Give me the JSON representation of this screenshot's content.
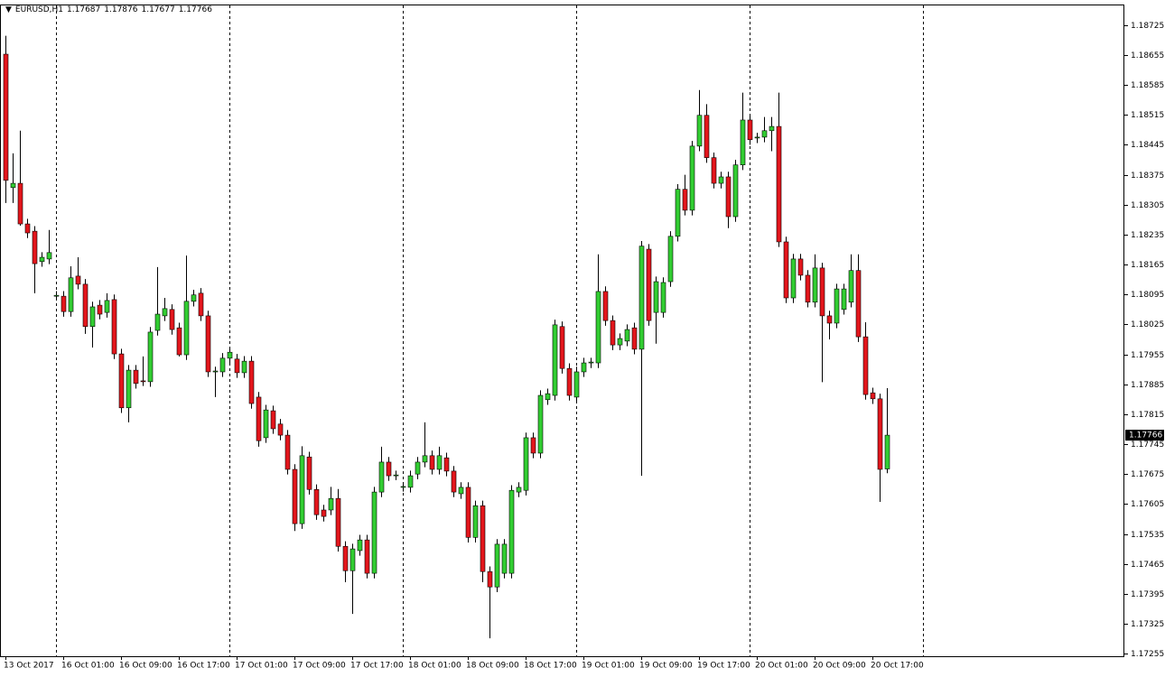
{
  "chart_data": {
    "type": "candlestick",
    "title": "EURUSD,H1",
    "up_color": "#32cd32",
    "down_color": "#e3161c",
    "ylim": [
      1.17249,
      1.18771
    ],
    "yticks": [
      1.17255,
      1.17325,
      1.17395,
      1.17465,
      1.17535,
      1.17605,
      1.17675,
      1.17745,
      1.17815,
      1.17885,
      1.17955,
      1.18025,
      1.18095,
      1.18165,
      1.18235,
      1.18305,
      1.18375,
      1.18445,
      1.18515,
      1.18585,
      1.18655,
      1.18725
    ],
    "categories": [
      "13 Oct 2017",
      null,
      null,
      null,
      null,
      null,
      null,
      null,
      "16 Oct 01:00",
      null,
      null,
      null,
      null,
      null,
      null,
      null,
      "16 Oct 09:00",
      null,
      null,
      null,
      null,
      null,
      null,
      null,
      "16 Oct 17:00",
      null,
      null,
      null,
      null,
      null,
      null,
      null,
      "17 Oct 01:00",
      null,
      null,
      null,
      null,
      null,
      null,
      null,
      "17 Oct 09:00",
      null,
      null,
      null,
      null,
      null,
      null,
      null,
      "17 Oct 17:00",
      null,
      null,
      null,
      null,
      null,
      null,
      null,
      "18 Oct 01:00",
      null,
      null,
      null,
      null,
      null,
      null,
      null,
      "18 Oct 09:00",
      null,
      null,
      null,
      null,
      null,
      null,
      null,
      "18 Oct 17:00",
      null,
      null,
      null,
      null,
      null,
      null,
      null,
      "19 Oct 01:00",
      null,
      null,
      null,
      null,
      null,
      null,
      null,
      "19 Oct 09:00",
      null,
      null,
      null,
      null,
      null,
      null,
      null,
      "19 Oct 17:00",
      null,
      null,
      null,
      null,
      null,
      null,
      null,
      "20 Oct 01:00",
      null,
      null,
      null,
      null,
      null,
      null,
      null,
      "20 Oct 09:00",
      null,
      null,
      null,
      null,
      null,
      null,
      null,
      "20 Oct 17:00",
      null,
      null
    ],
    "open": [
      1.18657,
      1.18345,
      1.18355,
      1.1826,
      1.18243,
      1.18172,
      1.18178,
      1.18091,
      1.18091,
      1.18055,
      1.18138,
      1.18119,
      1.1802,
      1.1807,
      1.18053,
      1.18083,
      1.17956,
      1.1783,
      1.17918,
      1.17893,
      1.17891,
      1.18011,
      1.18045,
      1.1806,
      1.18017,
      1.17954,
      1.18079,
      1.18098,
      1.18045,
      1.17914,
      1.17914,
      1.17946,
      1.17944,
      1.17912,
      1.17939,
      1.17855,
      1.1776,
      1.17823,
      1.17792,
      1.17766,
      1.17686,
      1.17559,
      1.17715,
      1.17639,
      1.17591,
      1.17591,
      1.17618,
      1.17506,
      1.17449,
      1.17496,
      1.17521,
      1.17443,
      1.17633,
      1.17703,
      1.17671,
      1.17644,
      1.17644,
      1.17675,
      1.17703,
      1.17718,
      1.17686,
      1.17713,
      1.17682,
      1.17629,
      1.17644,
      1.17527,
      1.17601,
      1.17447,
      1.17411,
      1.17443,
      1.17443,
      1.17633,
      1.17637,
      1.1776,
      1.17724,
      1.17849,
      1.17859,
      1.1802,
      1.17922,
      1.17855,
      1.17914,
      1.17935,
      1.17935,
      1.18102,
      1.18034,
      1.17977,
      1.17986,
      1.18017,
      1.17967,
      1.18201,
      1.18053,
      1.18053,
      1.18125,
      1.18231,
      1.18341,
      1.18292,
      1.18442,
      1.18514,
      1.18415,
      1.18355,
      1.1837,
      1.18277,
      1.18398,
      1.18503,
      1.18461,
      1.18463,
      1.18478,
      1.18488,
      1.18218,
      1.18087,
      1.18178,
      1.1814,
      1.18077,
      1.18157,
      1.18045,
      1.18028,
      1.1806,
      1.18077,
      1.18151,
      1.17996,
      1.17865,
      1.17851,
      1.17687
    ],
    "high": [
      1.187,
      1.18425,
      1.18478,
      1.18272,
      1.18255,
      1.18194,
      1.18246,
      1.18103,
      1.18103,
      1.18161,
      1.18182,
      1.18131,
      1.18078,
      1.18082,
      1.18098,
      1.18095,
      1.17968,
      1.1793,
      1.1793,
      1.1795,
      1.18019,
      1.18159,
      1.18087,
      1.18072,
      1.18029,
      1.18186,
      1.18106,
      1.1811,
      1.18057,
      1.17926,
      1.17958,
      1.17972,
      1.17956,
      1.17951,
      1.17951,
      1.17867,
      1.17837,
      1.17835,
      1.17804,
      1.17778,
      1.17698,
      1.1774,
      1.17727,
      1.17651,
      1.17603,
      1.17645,
      1.1764,
      1.17518,
      1.17512,
      1.17533,
      1.17533,
      1.17645,
      1.17739,
      1.17715,
      1.17683,
      1.17656,
      1.17683,
      1.17715,
      1.17796,
      1.1773,
      1.17739,
      1.17725,
      1.17694,
      1.17656,
      1.17656,
      1.17613,
      1.17613,
      1.17459,
      1.17523,
      1.17523,
      1.17649,
      1.17656,
      1.17772,
      1.17772,
      1.17871,
      1.17875,
      1.18036,
      1.18032,
      1.17934,
      1.17926,
      1.17947,
      1.17947,
      1.18189,
      1.18114,
      1.18046,
      1.18004,
      1.18025,
      1.18029,
      1.1822,
      1.18213,
      1.18137,
      1.18135,
      1.18243,
      1.18353,
      1.18375,
      1.18454,
      1.18573,
      1.1854,
      1.18427,
      1.18382,
      1.18382,
      1.1841,
      1.18567,
      1.18515,
      1.18473,
      1.1851,
      1.1851,
      1.18567,
      1.1823,
      1.1819,
      1.1819,
      1.18152,
      1.18189,
      1.18169,
      1.18057,
      1.1812,
      1.1812,
      1.18189,
      1.18189,
      1.1803,
      1.17877,
      1.17863,
      1.17876
    ],
    "low": [
      1.18309,
      1.18309,
      1.18256,
      1.18227,
      1.18098,
      1.1816,
      1.18166,
      1.18081,
      1.18043,
      1.18043,
      1.18107,
      1.18003,
      1.17971,
      1.18037,
      1.18041,
      1.17944,
      1.17818,
      1.17796,
      1.17875,
      1.17881,
      1.17879,
      1.17999,
      1.18033,
      1.18001,
      1.1795,
      1.17942,
      1.18067,
      1.18033,
      1.17902,
      1.17855,
      1.17902,
      1.17934,
      1.179,
      1.179,
      1.17828,
      1.17739,
      1.17748,
      1.17769,
      1.17754,
      1.17674,
      1.17542,
      1.17547,
      1.17627,
      1.17568,
      1.17564,
      1.17579,
      1.17494,
      1.17422,
      1.17348,
      1.17484,
      1.17431,
      1.17431,
      1.17621,
      1.17659,
      1.17661,
      1.17634,
      1.17632,
      1.17663,
      1.17691,
      1.17674,
      1.17674,
      1.1767,
      1.17621,
      1.17617,
      1.17515,
      1.17515,
      1.17422,
      1.17291,
      1.17399,
      1.17431,
      1.17431,
      1.17621,
      1.17625,
      1.17712,
      1.17712,
      1.17837,
      1.17847,
      1.1791,
      1.17847,
      1.17843,
      1.17902,
      1.17923,
      1.17923,
      1.18022,
      1.17965,
      1.17965,
      1.17974,
      1.17955,
      1.17671,
      1.18022,
      1.1798,
      1.18041,
      1.18113,
      1.18219,
      1.1828,
      1.1828,
      1.1843,
      1.18403,
      1.18343,
      1.18343,
      1.1825,
      1.18265,
      1.18386,
      1.18445,
      1.18449,
      1.18451,
      1.1843,
      1.18206,
      1.18075,
      1.18075,
      1.18128,
      1.18065,
      1.18065,
      1.1789,
      1.1799,
      1.18016,
      1.18048,
      1.18065,
      1.17984,
      1.17849,
      1.17839,
      1.1761,
      1.17677
    ],
    "close": [
      1.18362,
      1.18355,
      1.1826,
      1.18239,
      1.18167,
      1.18182,
      1.18193,
      1.18093,
      1.18055,
      1.18134,
      1.18119,
      1.1802,
      1.18066,
      1.18049,
      1.18081,
      1.17956,
      1.1783,
      1.17918,
      1.17887,
      1.17891,
      1.18007,
      1.18049,
      1.18062,
      1.18013,
      1.17954,
      1.18079,
      1.18094,
      1.18045,
      1.17914,
      1.17916,
      1.17946,
      1.1796,
      1.17912,
      1.17939,
      1.1784,
      1.17753,
      1.17825,
      1.17781,
      1.17766,
      1.17686,
      1.17559,
      1.17718,
      1.17639,
      1.1758,
      1.17576,
      1.17618,
      1.17506,
      1.17449,
      1.175,
      1.17521,
      1.17443,
      1.17633,
      1.17703,
      1.17671,
      1.17673,
      1.17646,
      1.17671,
      1.17703,
      1.17718,
      1.17686,
      1.17718,
      1.17682,
      1.17633,
      1.17644,
      1.17527,
      1.17601,
      1.17447,
      1.17411,
      1.17511,
      1.17511,
      1.17637,
      1.17644,
      1.1776,
      1.17724,
      1.17859,
      1.17863,
      1.18024,
      1.17922,
      1.17859,
      1.17914,
      1.17935,
      1.17937,
      1.18102,
      1.18034,
      1.17977,
      1.17992,
      1.18013,
      1.17967,
      1.18208,
      1.18034,
      1.18125,
      1.18123,
      1.18231,
      1.18341,
      1.18292,
      1.18442,
      1.18514,
      1.18415,
      1.18355,
      1.1837,
      1.18277,
      1.18398,
      1.18503,
      1.18457,
      1.18463,
      1.18478,
      1.18488,
      1.18218,
      1.18087,
      1.18178,
      1.1814,
      1.18077,
      1.18157,
      1.18045,
      1.18028,
      1.18108,
      1.18108,
      1.18151,
      1.17996,
      1.17861,
      1.17851,
      1.17686,
      1.17766
    ]
  }
}
